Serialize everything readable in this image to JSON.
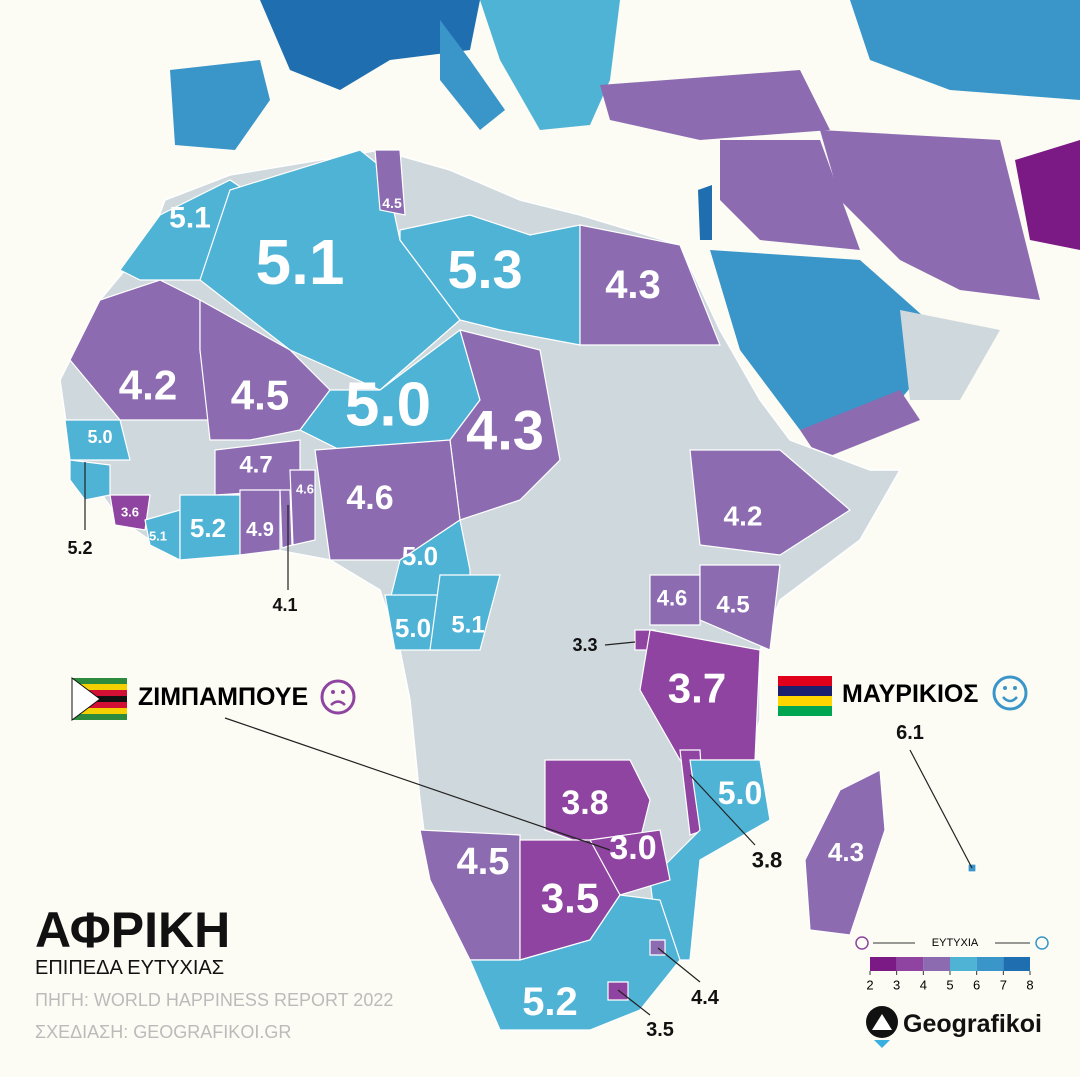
{
  "title": "ΑΦΡΙΚΗ",
  "subtitle": "ΕΠΙΠΕΔΑ ΕΥΤΥΧΙΑΣ",
  "source": "ΠΗΓΗ: WORLD HAPPINESS REPORT 2022",
  "credit": "ΣΧΕΔΙΑΣΗ: GEOGRAFIKOI.GR",
  "brand": "Geografikoi",
  "regions": [
    {
      "value": 5.1,
      "label": "5.1"
    },
    {
      "value": 5.1,
      "label": "5.1"
    },
    {
      "value": 4.5,
      "label": "4.5"
    },
    {
      "value": 5.3,
      "label": "5.3"
    },
    {
      "value": 4.3,
      "label": "4.3"
    },
    {
      "value": 4.2,
      "label": "4.2"
    },
    {
      "value": 4.5,
      "label": "4.5"
    },
    {
      "value": 5.0,
      "label": "5.0"
    },
    {
      "value": 4.3,
      "label": "4.3"
    },
    {
      "value": 5.0,
      "label": "5.0"
    },
    {
      "value": 5.2,
      "label": "5.2"
    },
    {
      "value": 3.6,
      "label": "3.6"
    },
    {
      "value": 5.1,
      "label": "5.1"
    },
    {
      "value": 5.2,
      "label": "5.2"
    },
    {
      "value": 4.7,
      "label": "4.7"
    },
    {
      "value": 4.9,
      "label": "4.9"
    },
    {
      "value": 4.1,
      "label": "4.1"
    },
    {
      "value": 4.6,
      "label": "4.6"
    },
    {
      "value": 4.6,
      "label": "4.6"
    },
    {
      "value": 5.0,
      "label": "5.0"
    },
    {
      "value": 5.0,
      "label": "5.0"
    },
    {
      "value": 5.1,
      "label": "5.1"
    },
    {
      "value": 4.2,
      "label": "4.2"
    },
    {
      "value": 4.6,
      "label": "4.6"
    },
    {
      "value": 4.5,
      "label": "4.5"
    },
    {
      "value": 3.3,
      "label": "3.3"
    },
    {
      "value": 3.7,
      "label": "3.7"
    },
    {
      "value": 3.8,
      "label": "3.8"
    },
    {
      "value": 3.8,
      "label": "3.8"
    },
    {
      "value": 5.0,
      "label": "5.0"
    },
    {
      "value": 3.0,
      "label": "3.0"
    },
    {
      "value": 4.5,
      "label": "4.5"
    },
    {
      "value": 3.5,
      "label": "3.5"
    },
    {
      "value": 5.2,
      "label": "5.2"
    },
    {
      "value": 3.5,
      "label": "3.5"
    },
    {
      "value": 4.4,
      "label": "4.4"
    },
    {
      "value": 4.3,
      "label": "4.3"
    },
    {
      "value": 6.1,
      "label": "6.1"
    }
  ],
  "callouts": [
    {
      "name": "ΖΙΜΠΑΜΠΟΥΕ"
    },
    {
      "name": "ΜΑΥΡΙΚΙΟΣ"
    }
  ],
  "legend": {
    "title": "ΕΥΤΥΧΙΑ",
    "ticks": [
      2,
      3,
      4,
      5,
      6,
      7,
      8
    ],
    "colors": [
      "#7b1a84",
      "#8e44a0",
      "#8c6bb1",
      "#4fb3d6",
      "#3a95c9",
      "#1f6fb0"
    ]
  }
}
